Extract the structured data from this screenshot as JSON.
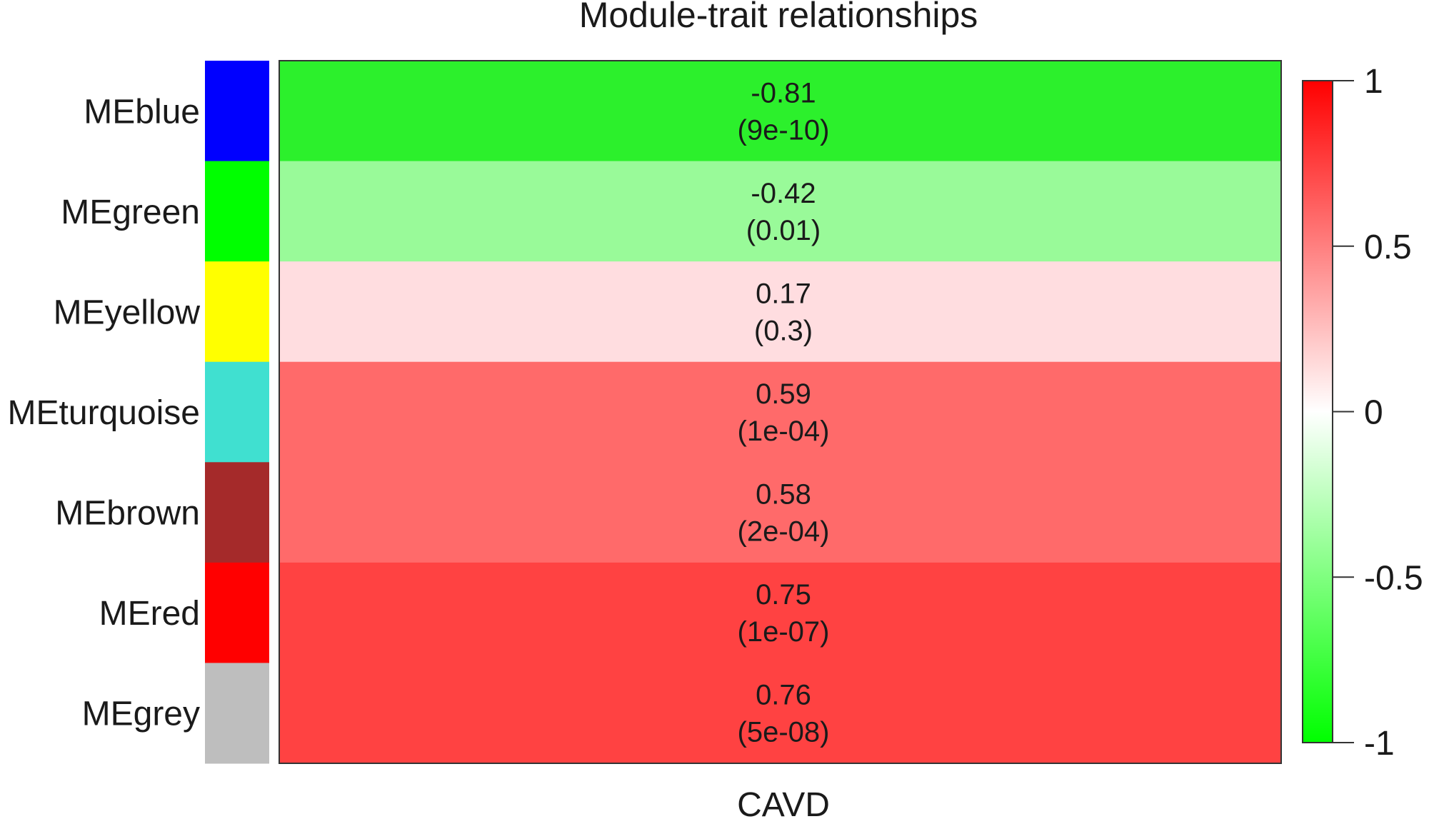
{
  "chart_data": {
    "type": "heatmap",
    "title": "Module-trait relationships",
    "xlabel": "CAVD",
    "ylabel": "",
    "columns": [
      "CAVD"
    ],
    "rows": [
      {
        "module": "MEblue",
        "module_color": "#0000FF",
        "value": -0.81,
        "label": "-0.81",
        "pvalue_label": "(9e-10)",
        "cell_color": "#2CF02C"
      },
      {
        "module": "MEgreen",
        "module_color": "#00FF00",
        "value": -0.42,
        "label": "-0.42",
        "pvalue_label": "(0.01)",
        "cell_color": "#99FA99"
      },
      {
        "module": "MEyellow",
        "module_color": "#FFFF00",
        "value": 0.17,
        "label": "0.17",
        "pvalue_label": "(0.3)",
        "cell_color": "#FFDDE0"
      },
      {
        "module": "MEturquoise",
        "module_color": "#40E0D0",
        "value": 0.59,
        "label": "0.59",
        "pvalue_label": "(1e-04)",
        "cell_color": "#FF6A6A"
      },
      {
        "module": "MEbrown",
        "module_color": "#A52A2A",
        "value": 0.58,
        "label": "0.58",
        "pvalue_label": "(2e-04)",
        "cell_color": "#FF6A6A"
      },
      {
        "module": "MEred",
        "module_color": "#FF0000",
        "value": 0.75,
        "label": "0.75",
        "pvalue_label": "(1e-07)",
        "cell_color": "#FF4242"
      },
      {
        "module": "MEgrey",
        "module_color": "#BEBEBE",
        "value": 0.76,
        "label": "0.76",
        "pvalue_label": "(5e-08)",
        "cell_color": "#FF4242"
      }
    ],
    "colorbar": {
      "range": [
        -1,
        1
      ],
      "colors": {
        "low": "#00FF00",
        "mid": "#FFFFFF",
        "high": "#FF0000"
      },
      "ticks": [
        {
          "value": 1,
          "label": "1"
        },
        {
          "value": 0.5,
          "label": "0.5"
        },
        {
          "value": 0,
          "label": "0"
        },
        {
          "value": -0.5,
          "label": "-0.5"
        },
        {
          "value": -1,
          "label": "-1"
        }
      ]
    },
    "legend": "right"
  }
}
